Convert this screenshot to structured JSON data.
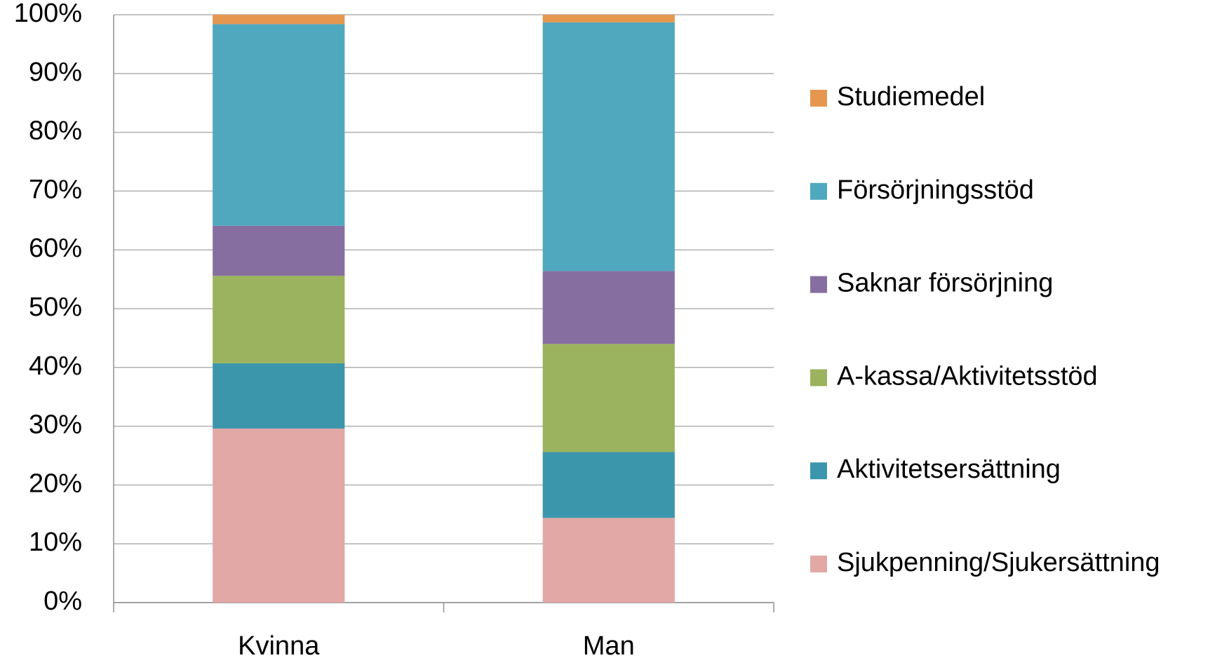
{
  "chart_data": {
    "type": "stacked_bar",
    "categories": [
      "Kvinna",
      "Man"
    ],
    "series": [
      {
        "name": "Sjukpenning/Sjukersättning",
        "color": "#e2a8a6",
        "values": [
          29.6,
          14.4
        ]
      },
      {
        "name": "Aktivitetsersättning",
        "color": "#3c96ab",
        "values": [
          11.1,
          11.2
        ]
      },
      {
        "name": "A-kassa/Aktivitetsstöd",
        "color": "#9bb35e",
        "values": [
          14.9,
          18.4
        ]
      },
      {
        "name": "Saknar försörjning",
        "color": "#866fa0",
        "values": [
          8.5,
          12.4
        ]
      },
      {
        "name": "Försörjningsstöd",
        "color": "#4fa8be",
        "values": [
          34.3,
          42.3
        ]
      },
      {
        "name": "Studiemedel",
        "color": "#e5974f",
        "values": [
          1.6,
          1.3
        ]
      }
    ],
    "ylim": [
      0,
      100
    ],
    "yticks": [
      {
        "value": 0,
        "label": "0%"
      },
      {
        "value": 10,
        "label": "10%"
      },
      {
        "value": 20,
        "label": "20%"
      },
      {
        "value": 30,
        "label": "30%"
      },
      {
        "value": 40,
        "label": "40%"
      },
      {
        "value": 50,
        "label": "50%"
      },
      {
        "value": 60,
        "label": "60%"
      },
      {
        "value": 70,
        "label": "70%"
      },
      {
        "value": 80,
        "label": "80%"
      },
      {
        "value": 90,
        "label": "90%"
      },
      {
        "value": 100,
        "label": "100%"
      }
    ],
    "grid": true,
    "legend": "right"
  }
}
